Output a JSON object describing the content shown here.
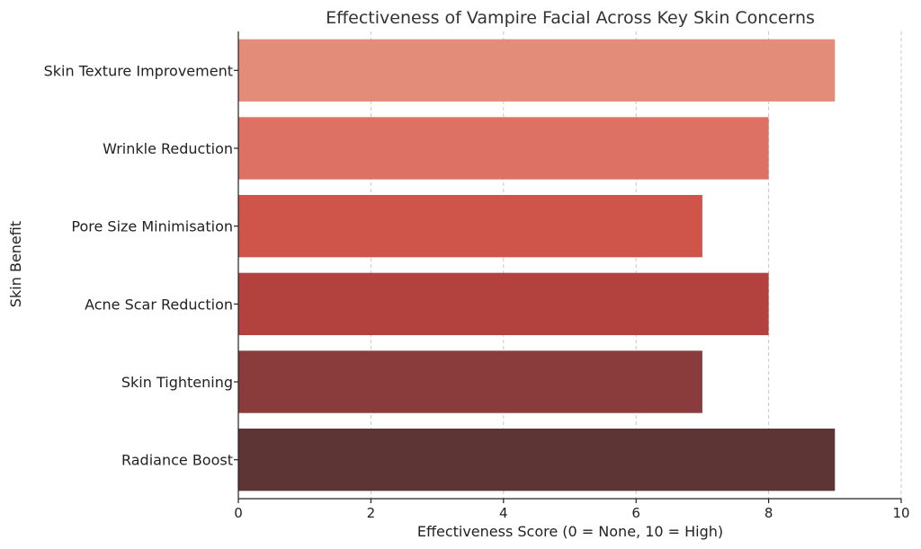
{
  "chart_data": {
    "type": "bar",
    "orientation": "horizontal",
    "title": "Effectiveness of Vampire Facial Across Key Skin Concerns",
    "xlabel": "Effectiveness Score (0 = None, 10 = High)",
    "ylabel": "Skin Benefit",
    "categories": [
      "Skin Texture Improvement",
      "Wrinkle Reduction",
      "Pore Size Minimisation",
      "Acne Scar Reduction",
      "Skin Tightening",
      "Radiance Boost"
    ],
    "values": [
      9,
      8,
      7,
      8,
      7,
      9
    ],
    "colors": [
      "#e38c79",
      "#dd7163",
      "#cf544a",
      "#b3413d",
      "#8a3c3c",
      "#5e3535"
    ],
    "xlim": [
      0,
      10
    ],
    "xticks": [
      0,
      2,
      4,
      6,
      8,
      10
    ],
    "grid": "vertical-dashed",
    "legend": "none"
  }
}
